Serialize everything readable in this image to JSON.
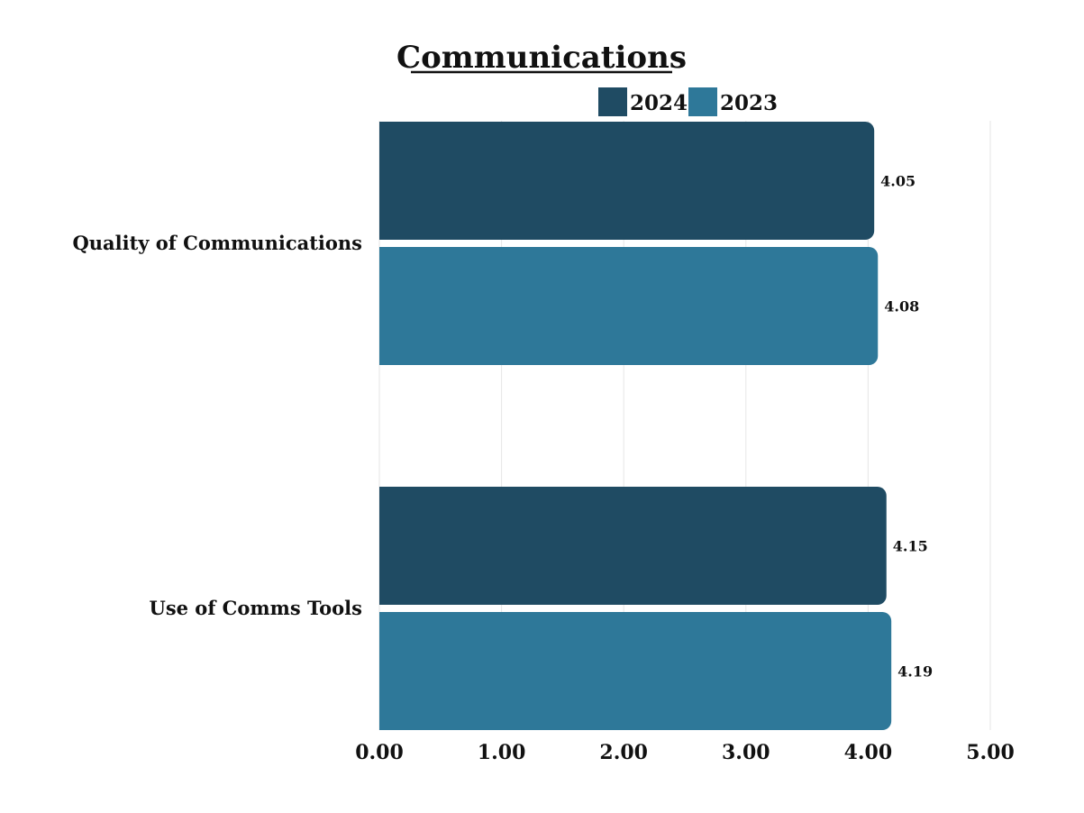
{
  "chart_data": {
    "type": "bar",
    "orientation": "horizontal",
    "title": "Communications",
    "categories": [
      "Quality of Communications",
      "Use of Comms Tools"
    ],
    "series": [
      {
        "name": "2024",
        "color": "#1f4b63",
        "values": [
          4.05,
          4.15
        ],
        "labels": [
          "4.05",
          "4.15"
        ]
      },
      {
        "name": "2023",
        "color": "#2e7899",
        "values": [
          4.08,
          4.19
        ],
        "labels": [
          "4.08",
          "4.19"
        ]
      }
    ],
    "xlim": [
      0,
      5
    ],
    "xticks": [
      0,
      1,
      2,
      3,
      4,
      5
    ],
    "xtick_labels": [
      "0.00",
      "1.00",
      "2.00",
      "3.00",
      "4.00",
      "5.00"
    ],
    "grid": true,
    "legend_position": "top"
  }
}
